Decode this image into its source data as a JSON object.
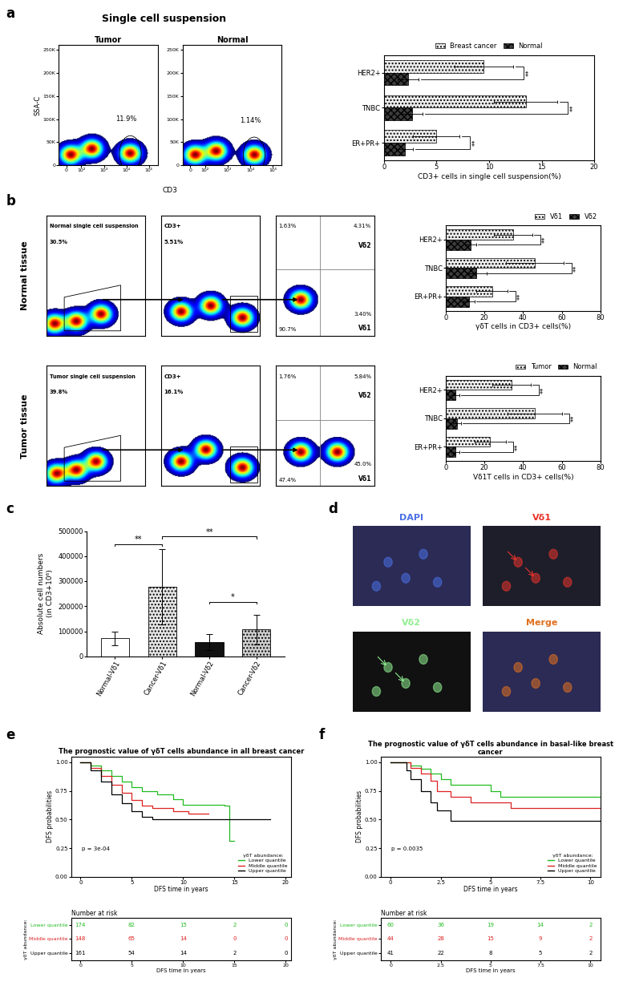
{
  "chart_data": [
    {
      "type": "flow",
      "panel_label": "a",
      "title": "Single cell suspension",
      "x_label": "CD3",
      "y_label": "SSA-C",
      "log": "x",
      "xlim": [
        -50,
        250000
      ],
      "xticks": [
        0,
        {
          "value": 100,
          "label": "10²"
        },
        {
          "value": 1000,
          "label": "10³"
        },
        {
          "value": 10000,
          "label": "10⁴"
        },
        {
          "value": 100000,
          "label": "10⁵"
        }
      ],
      "ylim": [
        0,
        260000
      ],
      "yticks": [
        0,
        {
          "value": 50000,
          "label": "50K"
        },
        {
          "value": 100000,
          "label": "100K"
        },
        {
          "value": 150000,
          "label": "150K"
        },
        {
          "value": 200000,
          "label": "200K"
        },
        {
          "value": 250000,
          "label": "250K"
        }
      ],
      "plots": [
        {
          "title": "Tumor",
          "gate_label": "11.9%",
          "populations": [
            [
              30,
              22000
            ],
            [
              300,
              35000
            ],
            [
              15000,
              25000
            ]
          ]
        },
        {
          "title": "Normal",
          "gate_label": "1.14%",
          "populations": [
            [
              30,
              22000
            ],
            [
              300,
              30000
            ],
            [
              15000,
              22000
            ]
          ]
        }
      ]
    },
    {
      "type": "bar",
      "orientation": "horizontal",
      "categories": [
        "HER2+",
        "TNBC",
        "ER+PR+"
      ],
      "series": [
        {
          "name": "Breast cancer",
          "color": "#eeeeee",
          "values": [
            9.5,
            13.5,
            5
          ],
          "errors": [
            2.8,
            3,
            2.2
          ]
        },
        {
          "name": "Normal",
          "color": "#3c3c3c",
          "values": [
            2.3,
            2.7,
            2
          ],
          "errors": [
            1,
            1,
            0.8
          ]
        }
      ],
      "x_label": "CD3+ cells in single cell suspension(%)",
      "xlim": [
        0,
        20
      ],
      "xticks": [
        0,
        5,
        10,
        15,
        20
      ],
      "significance": [
        "**",
        "**",
        "**"
      ],
      "legend": "lower center"
    },
    {
      "type": "flow",
      "panel_label": "b",
      "tick_labels": false,
      "xlim": [
        0,
        1
      ],
      "ylim": [
        0,
        1
      ],
      "rows": [
        {
          "row_label": "Normal tissue",
          "gating": {
            "labels": [
              "Normal single cell suspension",
              "30.5%"
            ],
            "populations": [
              [
                0.08,
                0.1
              ],
              [
                0.3,
                0.12
              ],
              [
                0.55,
                0.18
              ]
            ]
          },
          "cd3": {
            "labels": [
              "CD3+",
              "5.51%"
            ],
            "populations": [
              [
                0.2,
                0.2
              ],
              [
                0.5,
                0.25
              ],
              [
                0.82,
                0.15
              ]
            ]
          },
          "quadrant": {
            "UL": "1.63%",
            "UR": "4.31%",
            "LL": "90.7%",
            "LR": "3.40%",
            "upper_label": "Vδ2",
            "lower_label": "Vδ1",
            "populations": [
              [
                0.25,
                0.3
              ]
            ]
          }
        },
        {
          "row_label": "Tumor tissue",
          "gating": {
            "labels": [
              "Tumor single cell suspension",
              "39.8%"
            ],
            "populations": [
              [
                0.1,
                0.1
              ],
              [
                0.3,
                0.13
              ],
              [
                0.5,
                0.2
              ]
            ]
          },
          "cd3": {
            "labels": [
              "CD3+",
              "16.1%"
            ],
            "populations": [
              [
                0.2,
                0.2
              ],
              [
                0.45,
                0.3
              ],
              [
                0.82,
                0.15
              ]
            ]
          },
          "quadrant": {
            "UL": "1.76%",
            "UR": "5.84%",
            "LL": "47.4%",
            "LR": "45.0%",
            "upper_label": "Vδ2",
            "lower_label": "Vδ1",
            "populations": [
              [
                0.25,
                0.28
              ],
              [
                0.62,
                0.28
              ]
            ]
          }
        }
      ]
    },
    {
      "type": "bar",
      "orientation": "horizontal",
      "categories": [
        "HER2+",
        "TNBC",
        "ER+PR+"
      ],
      "series": [
        {
          "name": "Vδ1",
          "color": "#eeeeee",
          "values": [
            35,
            46,
            24
          ],
          "errors": [
            10,
            15,
            8
          ]
        },
        {
          "name": "Vδ2",
          "color": "#3c3c3c",
          "values": [
            13,
            16,
            12
          ],
          "errors": [
            3,
            5,
            3
          ]
        }
      ],
      "x_label": "γδT cells in CD3+ cells(%)",
      "xlim": [
        0,
        80
      ],
      "xticks": [
        0,
        20,
        40,
        60,
        80
      ],
      "significance": [
        "**",
        "**",
        "**"
      ],
      "legend": "lower right"
    },
    {
      "type": "bar",
      "orientation": "horizontal",
      "categories": [
        "HER2+",
        "TNBC",
        "ER+PR+"
      ],
      "series": [
        {
          "name": "Tumor",
          "color": "#eeeeee",
          "values": [
            34,
            46,
            23
          ],
          "errors": [
            10,
            14,
            8
          ]
        },
        {
          "name": "Normal",
          "color": "#3c3c3c",
          "values": [
            5,
            6,
            5
          ],
          "errors": [
            2,
            2,
            2
          ]
        }
      ],
      "x_label": "Vδ1T cells in CD3+ cells(%)",
      "xlim": [
        0,
        80
      ],
      "xticks": [
        0,
        20,
        40,
        60,
        80
      ],
      "significance": [
        "**",
        "**",
        "**"
      ],
      "legend": "lower right"
    },
    {
      "type": "bar",
      "panel_label": "c",
      "categories": [
        "Normal-Vδ1",
        "Cancer-Vδ1",
        "Normal-Vδ2",
        "Cancer-Vδ2"
      ],
      "values": [
        72000,
        278000,
        57000,
        107000
      ],
      "errors": [
        28000,
        150000,
        33000,
        60000
      ],
      "colors": [
        "#ffffff",
        "#e6e6e6",
        "#111111",
        "#cfcfcf"
      ],
      "y_label": "Absolute cell numbers\n(in CD3+10⁶)",
      "ylim": [
        0,
        500000
      ],
      "yticks": [
        0,
        100000,
        200000,
        300000,
        400000,
        500000
      ],
      "comparisons": [
        {
          "pair": [
            0,
            1
          ],
          "label": "**"
        },
        {
          "pair": [
            1,
            3
          ],
          "label": "**"
        },
        {
          "pair": [
            2,
            3
          ],
          "label": "*"
        }
      ]
    },
    {
      "type": "image",
      "panel_label": "d",
      "panels": [
        {
          "label": "DAPI",
          "color": "#4a6fe3"
        },
        {
          "label": "Vδ1",
          "color": "#e8332a"
        },
        {
          "label": "Vδ2",
          "color": "#90ee90"
        },
        {
          "label": "Merge",
          "color": "#e07020"
        }
      ]
    },
    {
      "type": "line",
      "panel_label": "e",
      "title": "The prognostic value of γδT cells abundance in all breast cancer",
      "x_label": "DFS time in years",
      "y_label": "DFS probabilities",
      "annotations": [
        "p = 3e-04"
      ],
      "xlim": [
        -0.9,
        20.5
      ],
      "xticks": [
        0,
        5,
        10,
        15,
        20
      ],
      "ylim": [
        0,
        1.05
      ],
      "yticks": [
        {
          "value": 0,
          "label": "0.00"
        },
        {
          "value": 0.25,
          "label": "0.25"
        },
        {
          "value": 0.5,
          "label": "0.50"
        },
        {
          "value": 0.75,
          "label": "0.75"
        },
        {
          "value": 1,
          "label": "1.00"
        }
      ],
      "legend": "lower right",
      "legend_title": "γδT abundance:",
      "line_style": "steps",
      "series": [
        {
          "name": "Lower quantile",
          "color": "#22bb22",
          "x": [
            0,
            1,
            2,
            3,
            4,
            5,
            6,
            7.5,
            9,
            10,
            14,
            14.5,
            15
          ],
          "values": [
            1,
            0.97,
            0.93,
            0.88,
            0.83,
            0.78,
            0.75,
            0.72,
            0.68,
            0.63,
            0.62,
            0.31,
            0.31
          ],
          "at_risk": [
            174,
            82,
            15,
            2,
            0
          ]
        },
        {
          "name": "Middle quantile",
          "color": "#dd2222",
          "x": [
            0,
            1,
            2,
            3,
            4,
            5,
            6,
            7,
            9,
            10.5,
            12.5
          ],
          "values": [
            1,
            0.95,
            0.88,
            0.8,
            0.73,
            0.67,
            0.62,
            0.6,
            0.57,
            0.55,
            0.55
          ],
          "at_risk": [
            148,
            65,
            14,
            0,
            0
          ]
        },
        {
          "name": "Upper quantile",
          "color": "#000000",
          "x": [
            0,
            1,
            2,
            3,
            4,
            5,
            6,
            7,
            18.5
          ],
          "values": [
            1,
            0.93,
            0.83,
            0.72,
            0.64,
            0.57,
            0.52,
            0.5,
            0.5
          ],
          "at_risk": [
            161,
            54,
            14,
            2,
            0
          ]
        }
      ],
      "risk_table": {
        "title": "Number at risk",
        "times": [
          0,
          5,
          10,
          15,
          20
        ]
      }
    },
    {
      "type": "line",
      "panel_label": "f",
      "title": "The prognostic value of γδT cells abundance in basal-like breast cancer",
      "x_label": "DFS time in years",
      "y_label": "DFS probabilities",
      "annotations": [
        "p = 0.0035"
      ],
      "xlim": [
        -0.5,
        10.5
      ],
      "xticks": [
        0,
        2.5,
        5,
        7.5,
        10
      ],
      "ylim": [
        0,
        1.05
      ],
      "yticks": [
        {
          "value": 0,
          "label": "0.00"
        },
        {
          "value": 0.25,
          "label": "0.25"
        },
        {
          "value": 0.5,
          "label": "0.50"
        },
        {
          "value": 0.75,
          "label": "0.75"
        },
        {
          "value": 1,
          "label": "1.00"
        }
      ],
      "legend": "lower right",
      "legend_title": "γδT abundance:",
      "line_style": "steps",
      "series": [
        {
          "name": "Lower quantile",
          "color": "#22bb22",
          "x": [
            0,
            1,
            1.5,
            2,
            2.5,
            3,
            5,
            5.5,
            10.5
          ],
          "values": [
            1,
            0.97,
            0.94,
            0.9,
            0.85,
            0.8,
            0.75,
            0.7,
            0.7
          ],
          "at_risk": [
            60,
            36,
            19,
            14,
            2
          ]
        },
        {
          "name": "Middle quantile",
          "color": "#dd2222",
          "x": [
            0,
            1,
            1.5,
            2,
            2.3,
            3,
            4,
            6,
            10.5
          ],
          "values": [
            1,
            0.95,
            0.9,
            0.84,
            0.75,
            0.7,
            0.65,
            0.6,
            0.6
          ],
          "at_risk": [
            44,
            28,
            15,
            9,
            2
          ]
        },
        {
          "name": "Upper quantile",
          "color": "#000000",
          "x": [
            0,
            0.8,
            1,
            1.5,
            2,
            2.3,
            3,
            10.5
          ],
          "values": [
            1,
            0.93,
            0.85,
            0.75,
            0.65,
            0.58,
            0.49,
            0.49
          ],
          "at_risk": [
            41,
            22,
            8,
            5,
            2
          ]
        }
      ],
      "risk_table": {
        "title": "Number at risk",
        "times": [
          0,
          2.5,
          5,
          7.5,
          10
        ]
      }
    }
  ]
}
